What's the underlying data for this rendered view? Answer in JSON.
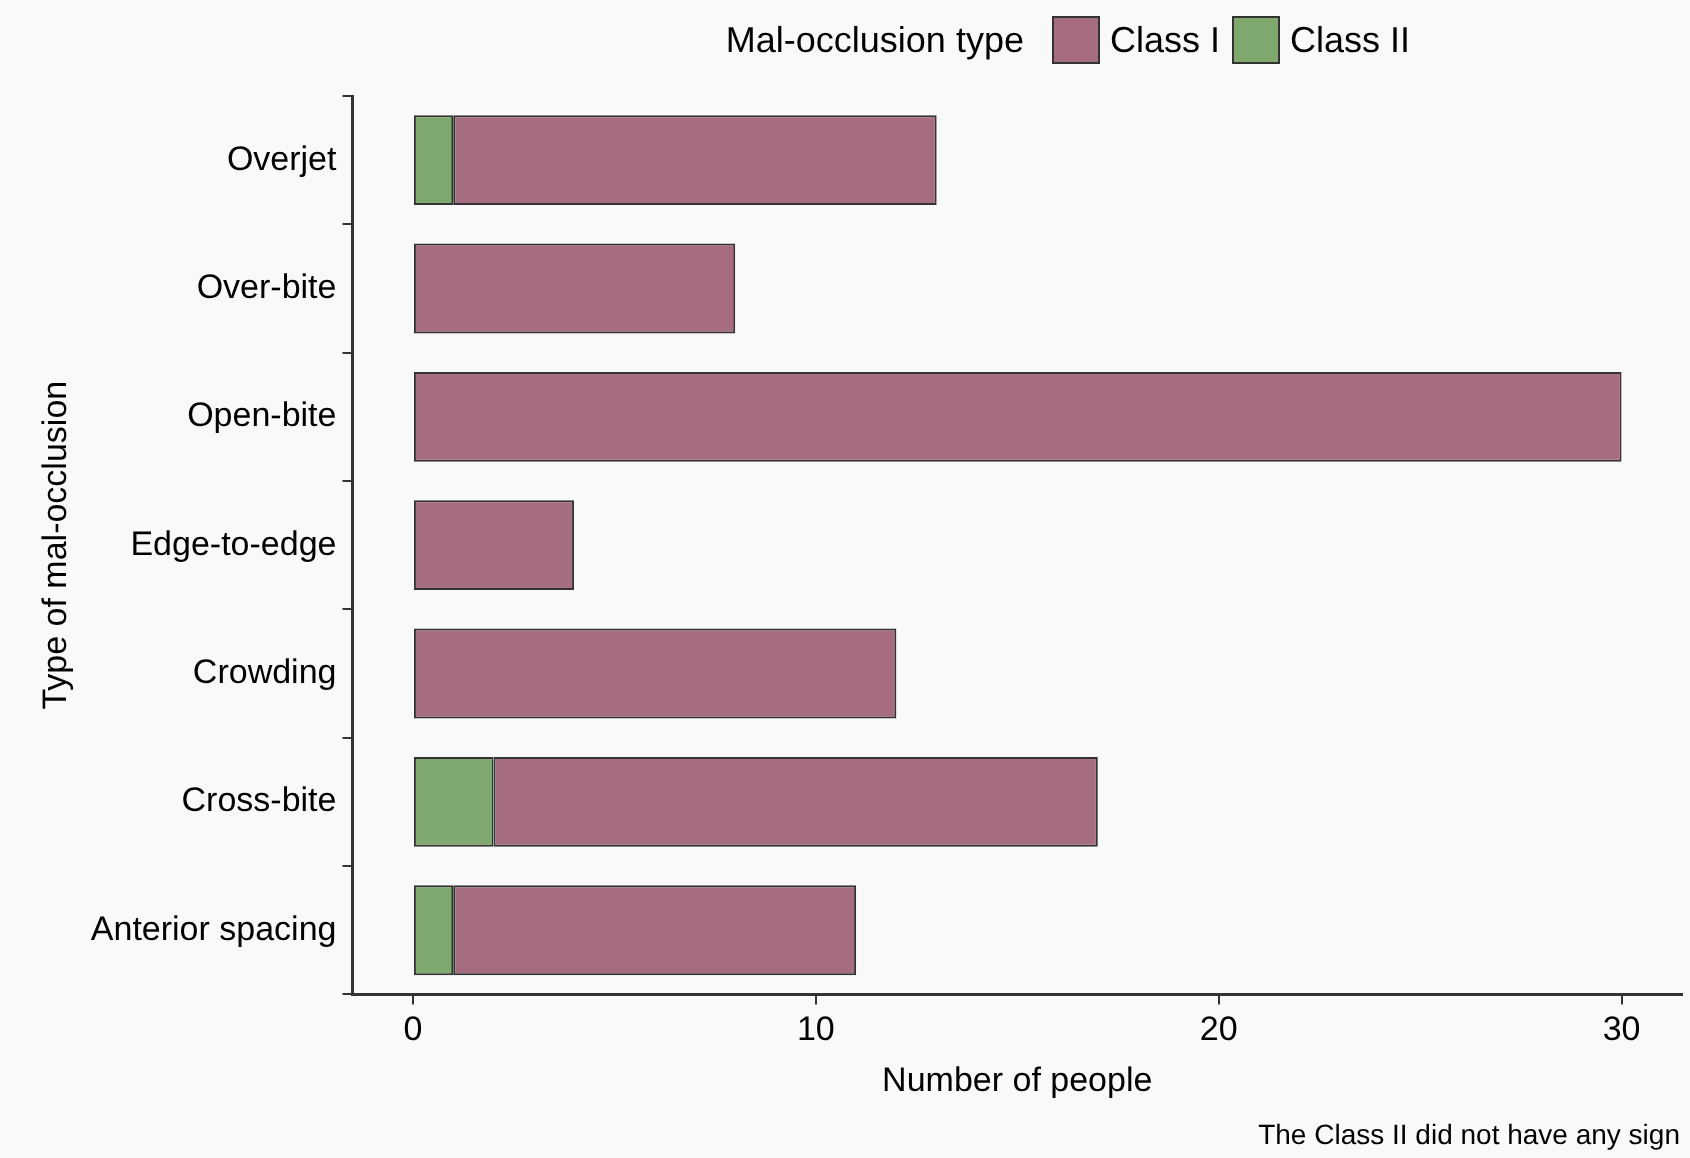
{
  "chart_data": {
    "type": "bar",
    "orientation": "horizontal",
    "stacked": true,
    "categories": [
      "Overjet",
      "Over-bite",
      "Open-bite",
      "Edge-to-edge",
      "Crowding",
      "Cross-bite",
      "Anterior spacing"
    ],
    "series": [
      {
        "name": "Class II",
        "color": "#7fa86e",
        "values": [
          1,
          0,
          0,
          0,
          0,
          2,
          1
        ]
      },
      {
        "name": "Class I",
        "color": "#a66d80",
        "values": [
          12,
          8,
          30,
          4,
          12,
          15,
          10
        ]
      }
    ],
    "xlim": [
      -1.5,
      31.5
    ],
    "xticks": [
      0,
      10,
      20,
      30
    ],
    "xlabel": "Number of people",
    "ylabel": "Type of mal-occlusion",
    "legend_title": "Mal-occlusion type",
    "legend": "top right",
    "grid": false,
    "annotations": [
      "The Class II did not have any sign"
    ]
  }
}
